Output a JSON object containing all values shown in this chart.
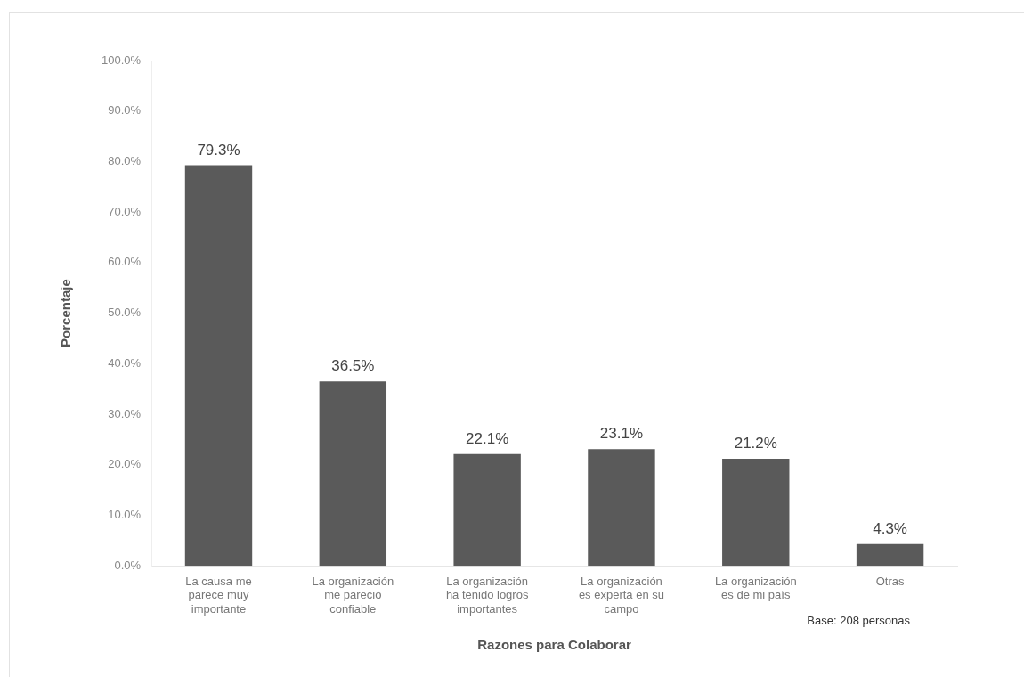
{
  "chart_data": {
    "type": "bar",
    "xlabel": "Razones para Colaborar",
    "ylabel": "Porcentaje",
    "categories": [
      "La causa me parece muy importante",
      "La organización me pareció confiable",
      "La organización ha tenido logros importantes",
      "La organización es experta en su campo",
      "La organización es de mi país",
      "Otras"
    ],
    "values": [
      79.3,
      36.5,
      22.1,
      23.1,
      21.2,
      4.3
    ],
    "value_labels": [
      "79.3%",
      "36.5%",
      "22.1%",
      "23.1%",
      "21.2%",
      "4.3%"
    ],
    "color": "#5a5a5a",
    "ylim": [
      0,
      100
    ],
    "yticks": [
      {
        "value": 0,
        "label": "0.0%"
      },
      {
        "value": 10,
        "label": "10.0%"
      },
      {
        "value": 20,
        "label": "20.0%"
      },
      {
        "value": 30,
        "label": "30.0%"
      },
      {
        "value": 40,
        "label": "40.0%"
      },
      {
        "value": 50,
        "label": "50.0%"
      },
      {
        "value": 60,
        "label": "60.0%"
      },
      {
        "value": 70,
        "label": "70.0%"
      },
      {
        "value": 80,
        "label": "80.0%"
      },
      {
        "value": 90,
        "label": "90.0%"
      },
      {
        "value": 100,
        "label": "100.0%"
      }
    ],
    "annotations": [
      "Base: 208 personas"
    ]
  }
}
